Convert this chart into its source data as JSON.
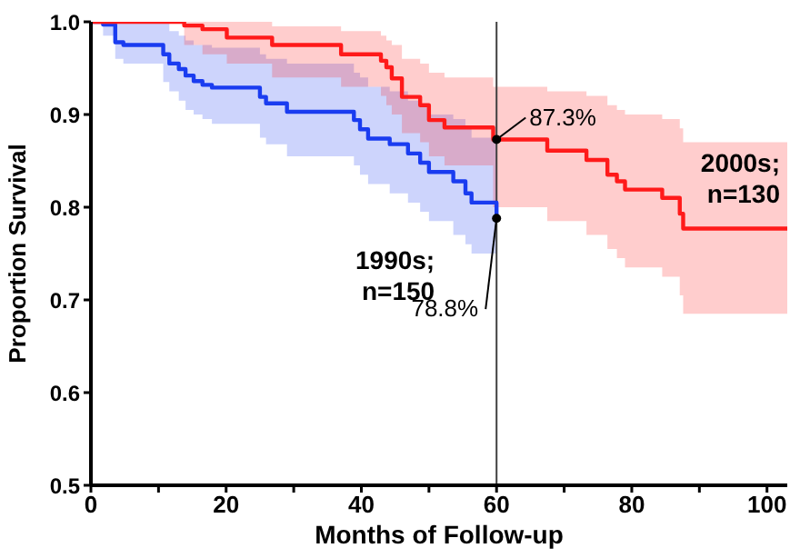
{
  "chart_data": {
    "type": "step",
    "xlabel": "Months of Follow-up",
    "ylabel": "Proportion Survival",
    "xlim": [
      0,
      103
    ],
    "xticks": [
      0,
      {
        "value": 10,
        "label": null
      },
      20,
      {
        "value": 30,
        "label": null
      },
      40,
      {
        "value": 50,
        "label": null
      },
      60,
      {
        "value": 70,
        "label": null
      },
      80,
      {
        "value": 90,
        "label": null
      },
      100
    ],
    "ylim": [
      0.5,
      1.0
    ],
    "yticks": [
      {
        "value": 0.5,
        "label": "0.5"
      },
      {
        "value": 0.6,
        "label": "0.6"
      },
      {
        "value": 0.7,
        "label": "0.7"
      },
      {
        "value": 0.8,
        "label": "0.8"
      },
      {
        "value": 0.9,
        "label": "0.9"
      },
      {
        "value": 1.0,
        "label": "1.0"
      }
    ],
    "grid": false,
    "marker": "none",
    "line_style": "solid",
    "series": [
      {
        "name": "1990s; n=150",
        "color": "#1a3cf0",
        "x": [
          0,
          1.8,
          3.6,
          4.8,
          10.7,
          11.6,
          13,
          14,
          15.2,
          16.5,
          17.9,
          25,
          25.9,
          29,
          38.9,
          39.8,
          41,
          44.2,
          46.9,
          48.7,
          50,
          53.6,
          55.4,
          56.3,
          60
        ],
        "values": [
          1,
          0.997,
          0.978,
          0.975,
          0.965,
          0.955,
          0.949,
          0.942,
          0.936,
          0.932,
          0.929,
          0.919,
          0.912,
          0.903,
          0.894,
          0.884,
          0.874,
          0.868,
          0.858,
          0.848,
          0.838,
          0.828,
          0.815,
          0.805,
          0.788
        ],
        "lower": [
          1,
          0.985,
          0.96,
          0.955,
          0.935,
          0.925,
          0.915,
          0.905,
          0.9,
          0.895,
          0.89,
          0.875,
          0.868,
          0.855,
          0.845,
          0.835,
          0.825,
          0.815,
          0.805,
          0.795,
          0.785,
          0.77,
          0.76,
          0.75,
          0.738
        ],
        "upper": [
          1,
          1,
          1,
          1,
          1,
          0.99,
          0.985,
          0.98,
          0.975,
          0.975,
          0.972,
          0.965,
          0.96,
          0.955,
          0.945,
          0.94,
          0.93,
          0.925,
          0.915,
          0.91,
          0.9,
          0.895,
          0.885,
          0.875,
          0.86
        ]
      },
      {
        "name": "2000s; n=130",
        "color": "#ff1a1a",
        "x": [
          0,
          13.8,
          16.5,
          20.1,
          26.8,
          37,
          42.9,
          43.7,
          44.5,
          46,
          48.7,
          50,
          52.3,
          59.5,
          67.5,
          73.3,
          76.4,
          77.8,
          79,
          84.5,
          87.1,
          87.6,
          103
        ],
        "values": [
          1,
          0.996,
          0.992,
          0.983,
          0.975,
          0.965,
          0.958,
          0.951,
          0.939,
          0.919,
          0.91,
          0.894,
          0.886,
          0.873,
          0.861,
          0.851,
          0.835,
          0.828,
          0.819,
          0.81,
          0.793,
          0.777,
          0.777
        ],
        "lower": [
          1,
          0.975,
          0.965,
          0.955,
          0.94,
          0.93,
          0.92,
          0.91,
          0.9,
          0.88,
          0.87,
          0.855,
          0.845,
          0.8,
          0.785,
          0.77,
          0.755,
          0.745,
          0.735,
          0.725,
          0.705,
          0.685,
          0.685
        ],
        "upper": [
          1,
          1,
          1,
          1,
          0.995,
          0.99,
          0.985,
          0.98,
          0.975,
          0.96,
          0.955,
          0.945,
          0.94,
          0.93,
          0.925,
          0.92,
          0.91,
          0.905,
          0.9,
          0.895,
          0.885,
          0.87,
          0.87
        ]
      }
    ],
    "ref_lines": [
      {
        "axis": "x",
        "value": 60,
        "color": "#404040"
      }
    ],
    "annotations": [
      {
        "text": "87.3%",
        "x": 60,
        "y": 0.873
      },
      {
        "text": "78.8%",
        "x": 60,
        "y": 0.788
      }
    ]
  }
}
